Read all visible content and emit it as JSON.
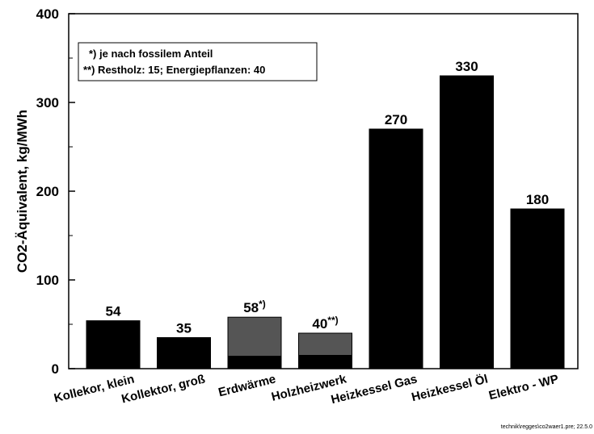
{
  "chart_data": {
    "type": "bar",
    "ylabel": "CO2-Äquivalent, kg/MWh",
    "ylim": [
      0,
      400
    ],
    "yticks": [
      "0",
      "100",
      "200",
      "300",
      "400"
    ],
    "categories": [
      "Kollekor, klein",
      "Kollektor, groß",
      "Erdwärme",
      "Holzheizwerk",
      "Heizkessel Gas",
      "Heizkessel Öl",
      "Elektro - WP"
    ],
    "series": [
      {
        "values": [
          54,
          35,
          14,
          15,
          270,
          330,
          180
        ]
      },
      {
        "values": [
          0,
          0,
          44,
          25,
          0,
          0,
          0
        ]
      }
    ],
    "totals": [
      54,
      35,
      58,
      40,
      270,
      330,
      180
    ],
    "data_labels": [
      {
        "main": "54",
        "sup": ""
      },
      {
        "main": "35",
        "sup": ""
      },
      {
        "main": "58",
        "sup": "*)"
      },
      {
        "main": "40",
        "sup": "**)"
      },
      {
        "main": "270",
        "sup": ""
      },
      {
        "main": "330",
        "sup": ""
      },
      {
        "main": "180",
        "sup": ""
      }
    ],
    "colors": {
      "base": "#000000",
      "stack": "#555555"
    },
    "legend_notes": [
      "*) je nach fossilem Anteil",
      "**) Restholz: 15; Energiepflanzen: 40"
    ],
    "legend_placement": "top-left",
    "grid": false,
    "footer": "technik\\regges\\co2waer1.pre; 22.5.0"
  }
}
